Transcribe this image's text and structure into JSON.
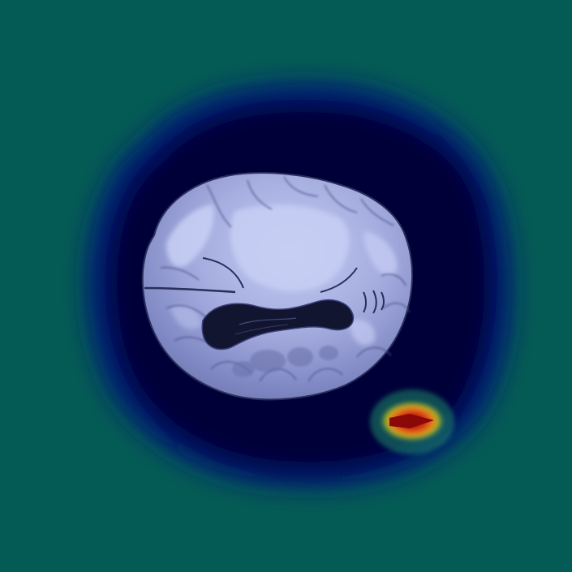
{
  "image": {
    "kind": "axial brain MRI slice with heatmap overlay",
    "colormap": "jet",
    "colors": {
      "background": "#045a55",
      "halo_outer": "#0a2a8a",
      "halo_inner": "#020236",
      "brain_light": "#b8c0ec",
      "brain_mid": "#8d95cf",
      "brain_dark": "#5a6098",
      "ventricle": "#121530",
      "hotspot_core": "#a51010",
      "hotspot_mid": "#e05a10",
      "hotspot_edge": "#c9c020"
    },
    "hotspot_count": 1
  }
}
